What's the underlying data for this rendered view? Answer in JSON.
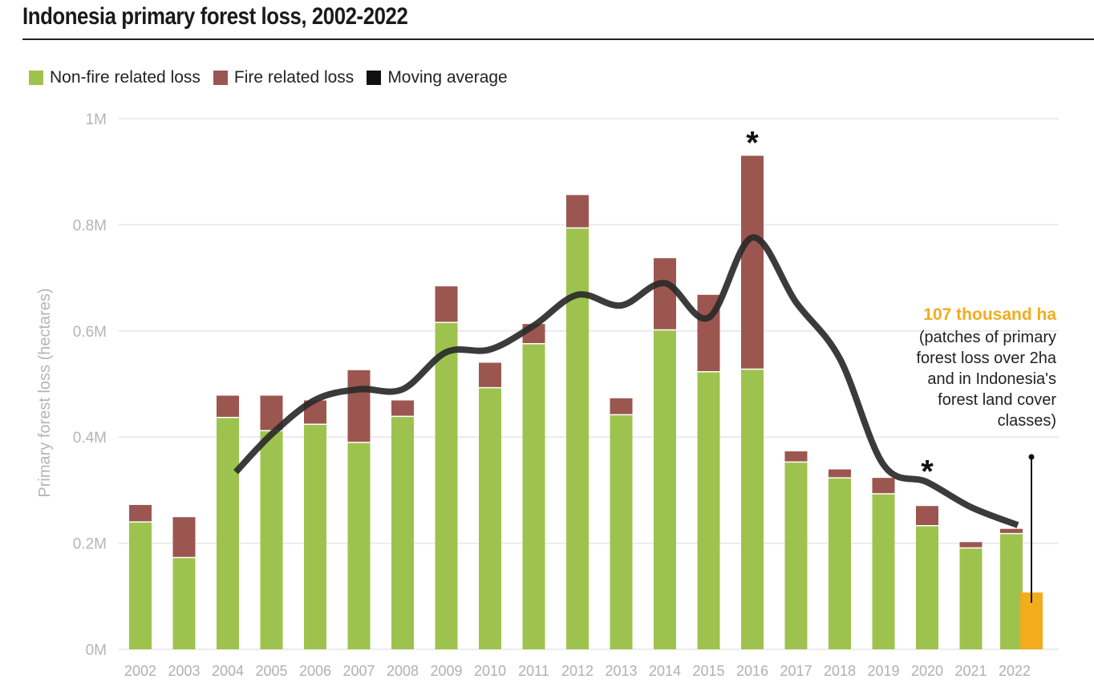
{
  "title": "Indonesia primary forest loss, 2002-2022",
  "legend": [
    {
      "label": "Non-fire related loss",
      "color": "#9dc34e"
    },
    {
      "label": "Fire related loss",
      "color": "#9c5650"
    },
    {
      "label": "Moving average",
      "color": "#111111"
    }
  ],
  "annotation": {
    "value": "107 thousand ha",
    "text_lines": [
      "(patches of primary",
      "forest loss over 2ha",
      "and in Indonesia's",
      "forest land cover",
      "classes)"
    ],
    "color": "#f2ac1c"
  },
  "chart_data": {
    "type": "bar",
    "stacked": true,
    "title": "Indonesia primary forest loss, 2002-2022",
    "xlabel": "",
    "ylabel": "Primary forest loss (hectares)",
    "ylim": [
      0,
      1000000
    ],
    "yticks": [
      {
        "value": 0,
        "label": "0M"
      },
      {
        "value": 200000,
        "label": "0.2M"
      },
      {
        "value": 400000,
        "label": "0.4M"
      },
      {
        "value": 600000,
        "label": "0.6M"
      },
      {
        "value": 800000,
        "label": "0.8M"
      },
      {
        "value": 1000000,
        "label": "1M"
      }
    ],
    "categories": [
      "2002",
      "2003",
      "2004",
      "2005",
      "2006",
      "2007",
      "2008",
      "2009",
      "2010",
      "2011",
      "2012",
      "2013",
      "2014",
      "2015",
      "2016",
      "2017",
      "2018",
      "2019",
      "2020",
      "2021",
      "2022"
    ],
    "series": [
      {
        "name": "Non-fire related loss",
        "color": "#9dc34e",
        "values": [
          240000,
          173000,
          437000,
          412000,
          424000,
          390000,
          439000,
          616000,
          493000,
          576000,
          794000,
          442000,
          602000,
          523000,
          528000,
          353000,
          323000,
          293000,
          233000,
          191000,
          218000
        ]
      },
      {
        "name": "Fire related loss",
        "color": "#9c5650",
        "values": [
          32000,
          76000,
          41000,
          66000,
          45000,
          136000,
          30000,
          68000,
          47000,
          37000,
          62000,
          31000,
          135000,
          145000,
          402000,
          20000,
          16000,
          30000,
          37000,
          11000,
          9000
        ]
      }
    ],
    "moving_average": {
      "name": "Moving average",
      "color": "#111111",
      "x": [
        "2004",
        "2005",
        "2006",
        "2007",
        "2008",
        "2009",
        "2010",
        "2011",
        "2012",
        "2013",
        "2014",
        "2015",
        "2016",
        "2017",
        "2018",
        "2019",
        "2020",
        "2021",
        "2022"
      ],
      "values": [
        334000,
        405000,
        470000,
        490000,
        490000,
        560000,
        565000,
        610000,
        668000,
        648000,
        690000,
        625000,
        776000,
        654000,
        548000,
        348000,
        315000,
        268000,
        234000
      ]
    },
    "highlight": {
      "category": "2022",
      "value": 107000,
      "color": "#f2ac1c"
    },
    "markers": [
      {
        "category": "2016",
        "label": "*"
      },
      {
        "category": "2020",
        "label": "*"
      }
    ]
  }
}
